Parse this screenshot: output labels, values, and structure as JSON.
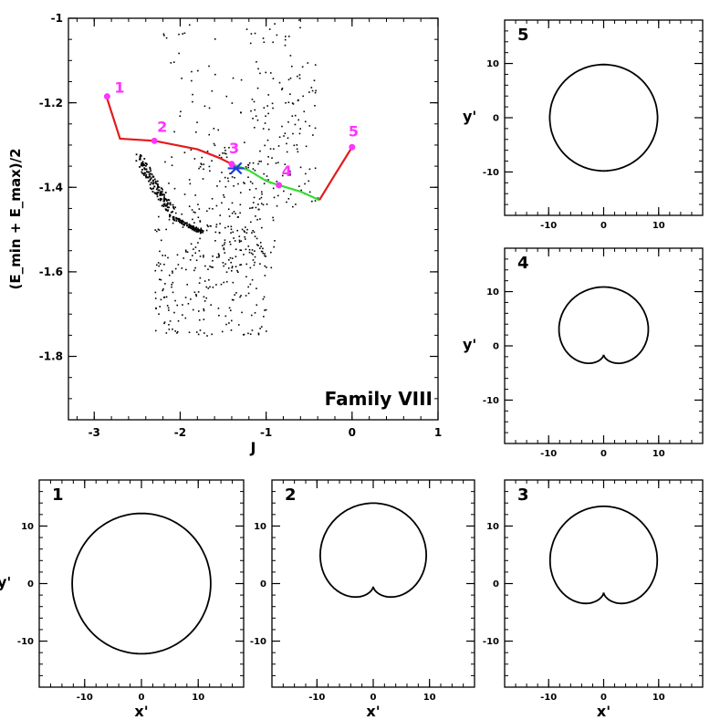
{
  "chart_data": [
    {
      "id": "main",
      "type": "scatter",
      "annotation": "Family VIII",
      "xlabel": "J",
      "ylabel": "(E_min + E_max)/2",
      "xlim": [
        -3.3,
        1.0
      ],
      "ylim": [
        -1.95,
        -1.0
      ],
      "x_ticks": [
        -3,
        -2,
        -1,
        0,
        1
      ],
      "y_ticks": [
        -1.8,
        -1.6,
        -1.4,
        -1.2,
        -1.0
      ],
      "x_tick_labels": [
        "-3",
        "-2",
        "-1",
        "0",
        "1"
      ],
      "y_tick_labels": [
        "-1.8",
        "-1.6",
        "-1.4",
        "-1.2",
        "-1"
      ],
      "colors": {
        "curve_red": "#e41a1c",
        "curve_green": "#33dd33",
        "markers": "#ff33ff",
        "star": "#1f3fd6",
        "dots": "#000000"
      },
      "curve_segments": [
        {
          "color": "red",
          "x": [
            -2.85,
            -2.7,
            -2.3,
            -2.05,
            -1.8,
            -1.55,
            -1.4
          ],
          "y": [
            -1.19,
            -1.285,
            -1.29,
            -1.3,
            -1.31,
            -1.33,
            -1.345
          ]
        },
        {
          "color": "green",
          "x": [
            -1.4,
            -1.2,
            -1.0,
            -0.85,
            -0.6,
            -0.38
          ],
          "y": [
            -1.345,
            -1.36,
            -1.385,
            -1.395,
            -1.41,
            -1.43
          ]
        },
        {
          "color": "red",
          "x": [
            -0.38,
            -0.2,
            0.0
          ],
          "y": [
            -1.43,
            -1.37,
            -1.305
          ]
        }
      ],
      "marked_points": [
        {
          "label": "1",
          "x": -2.85,
          "y": -1.185
        },
        {
          "label": "2",
          "x": -2.3,
          "y": -1.29
        },
        {
          "label": "3",
          "x": -1.4,
          "y": -1.345
        },
        {
          "label": "4",
          "x": -0.85,
          "y": -1.395
        },
        {
          "label": "5",
          "x": 0.0,
          "y": -1.305
        }
      ],
      "star_point": {
        "x": -1.35,
        "y": -1.355
      }
    },
    {
      "id": "orbit-5",
      "type": "line",
      "panel_label": "5",
      "xlabel": "",
      "ylabel": "y'",
      "xlim": [
        -18,
        18
      ],
      "ylim": [
        -18,
        18
      ],
      "x_ticks": [
        -10,
        0,
        10
      ],
      "y_ticks": [
        -10,
        0,
        10
      ],
      "x_tick_labels": [
        "-10",
        "0",
        "10"
      ],
      "y_tick_labels": [
        "-10",
        "0",
        "10"
      ],
      "orbit": {
        "kind": "circle",
        "radius": 9.8,
        "cx": 0,
        "cy": 0
      }
    },
    {
      "id": "orbit-4",
      "type": "line",
      "panel_label": "4",
      "xlabel": "",
      "ylabel": "y'",
      "xlim": [
        -18,
        18
      ],
      "ylim": [
        -18,
        18
      ],
      "x_ticks": [
        -10,
        0,
        10
      ],
      "y_ticks": [
        -10,
        0,
        10
      ],
      "x_tick_labels": [
        "-10",
        "0",
        "10"
      ],
      "y_tick_labels": [
        "-10",
        "0",
        "10"
      ],
      "orbit": {
        "kind": "loop",
        "outer_radius": 12.5,
        "loop_height": 11
      }
    },
    {
      "id": "orbit-1",
      "type": "line",
      "panel_label": "1",
      "xlabel": "x'",
      "ylabel": "y'",
      "xlim": [
        -18,
        18
      ],
      "ylim": [
        -18,
        18
      ],
      "x_ticks": [
        -10,
        0,
        10
      ],
      "y_ticks": [
        -10,
        0,
        10
      ],
      "x_tick_labels": [
        "-10",
        "0",
        "10"
      ],
      "y_tick_labels": [
        "-10",
        "0",
        "10"
      ],
      "orbit": {
        "kind": "circle",
        "radius": 12.2,
        "cx": 0,
        "cy": 0
      }
    },
    {
      "id": "orbit-2",
      "type": "line",
      "panel_label": "2",
      "xlabel": "x'",
      "ylabel": "",
      "xlim": [
        -18,
        18
      ],
      "ylim": [
        -18,
        18
      ],
      "x_ticks": [
        -10,
        0,
        10
      ],
      "y_ticks": [
        -10,
        0,
        10
      ],
      "x_tick_labels": [
        "-10",
        "0",
        "10"
      ],
      "y_tick_labels": [
        "-10",
        "0",
        "10"
      ],
      "orbit": {
        "kind": "loop",
        "outer_radius": 14.5,
        "loop_height": 3.5
      }
    },
    {
      "id": "orbit-3",
      "type": "line",
      "panel_label": "3",
      "xlabel": "x'",
      "ylabel": "",
      "xlim": [
        -18,
        18
      ],
      "ylim": [
        -18,
        18
      ],
      "x_ticks": [
        -10,
        0,
        10
      ],
      "y_ticks": [
        -10,
        0,
        10
      ],
      "x_tick_labels": [
        "-10",
        "0",
        "10"
      ],
      "y_tick_labels": [
        "-10",
        "0",
        "10"
      ],
      "orbit": {
        "kind": "loop",
        "outer_radius": 15,
        "loop_height": 10.5
      }
    }
  ]
}
